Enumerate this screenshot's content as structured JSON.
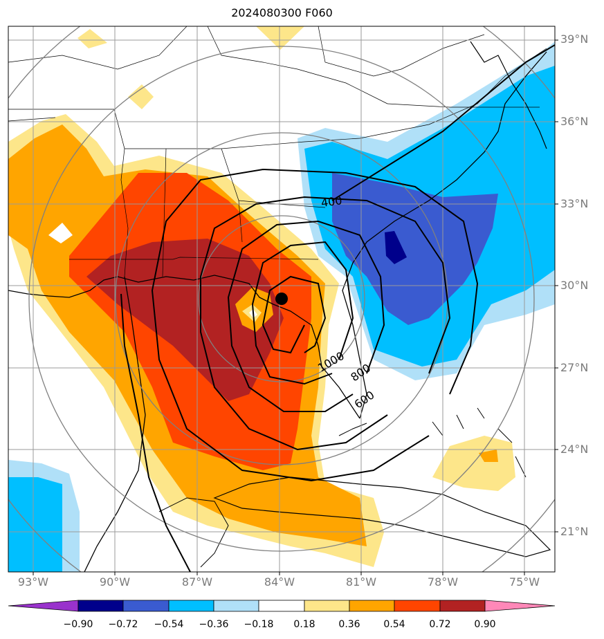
{
  "title": "2024080300 F060",
  "axes": {
    "latitude_labels": [
      "39°N",
      "36°N",
      "33°N",
      "30°N",
      "27°N",
      "24°N",
      "21°N"
    ],
    "longitude_labels": [
      "93°W",
      "90°W",
      "87°W",
      "84°W",
      "81°W",
      "78°W",
      "75°W"
    ]
  },
  "contours": {
    "labels": [
      "400",
      "1000",
      "800",
      "600"
    ],
    "color": "#000000"
  },
  "storm_center": {
    "lat": 29.5,
    "lon": -84.0,
    "marker": "filled-circle"
  },
  "colorbar": {
    "ticks": [
      "−0.90",
      "−0.72",
      "−0.54",
      "−0.36",
      "−0.18",
      "0.18",
      "0.36",
      "0.54",
      "0.72",
      "0.90"
    ],
    "colors": [
      "#9932cc",
      "#00008b",
      "#3a5bd0",
      "#00bfff",
      "#b0e0f8",
      "#ffffff",
      "#fde68a",
      "#ffa500",
      "#ff4500",
      "#b22222",
      "#ff88b8"
    ]
  },
  "chart_data": {
    "type": "heatmap",
    "title": "2024080300 F060",
    "xlabel": "",
    "ylabel": "",
    "xlim": [
      -94,
      -74
    ],
    "ylim": [
      19.5,
      39.5
    ],
    "gridlines": true,
    "contour_levels": [
      400,
      600,
      800,
      1000
    ],
    "colorbar_levels": [
      -0.9,
      -0.72,
      -0.54,
      -0.36,
      -0.18,
      0.18,
      0.36,
      0.54,
      0.72,
      0.9
    ]
  }
}
